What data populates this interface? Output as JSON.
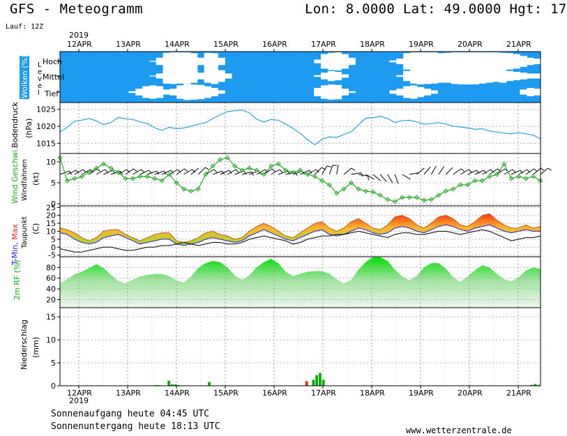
{
  "header": {
    "title": "GFS - Meteogramm",
    "position": "Lon: 8.0000 Lat: 49.0000 Hgt: 17",
    "run": "Lauf: 12Z"
  },
  "footer": {
    "sunrise": "Sonnenaufgang heute 04:45 UTC",
    "sunset": "Sonnenuntergang heute 18:13 UTC",
    "url": "www.wetterzentrale.de"
  },
  "colors": {
    "cloud_sky": "#1e9bf0",
    "cloud_white": "#ffffff",
    "pressure_line": "#2aa0e0",
    "wind_line": "#22a822",
    "tmin": "#2222dd",
    "tmax": "#dd2222",
    "dewpoint": "#000000",
    "rh_top": "#00dd00",
    "rh_bottom": "#eef7ee",
    "precip_green": "#11aa11",
    "precip_red": "#dd3311"
  },
  "chart_data": [
    {
      "type": "heatmap",
      "name": "clouds",
      "ylabel": "Wolken (%)",
      "level_word": "Level",
      "level_labels": [
        "Hoch",
        "Mittel",
        "Tief"
      ],
      "x_start": "2019-04-12T00",
      "x_end": "2019-04-21T18",
      "year": "2019",
      "date_labels": [
        "12APR",
        "13APR",
        "14APR",
        "15APR",
        "16APR",
        "17APR",
        "18APR",
        "19APR",
        "20APR",
        "21APR"
      ],
      "hoch_cover": [
        0,
        0,
        0,
        0,
        0,
        0,
        0,
        0,
        0,
        0,
        0,
        0,
        0,
        5,
        40,
        95,
        100,
        100,
        100,
        90,
        40,
        95,
        90,
        40,
        0,
        0,
        0,
        0,
        0,
        0,
        0,
        0,
        0,
        0,
        0,
        0,
        0,
        20,
        80,
        95,
        100,
        80,
        40,
        0,
        0,
        0,
        0,
        0,
        10,
        30,
        90,
        100,
        100,
        100,
        100,
        90,
        95,
        100,
        100,
        100,
        100,
        100,
        100,
        100,
        95,
        90,
        80,
        60,
        40,
        30
      ],
      "mittel_cover": [
        0,
        0,
        0,
        0,
        0,
        0,
        0,
        0,
        0,
        0,
        0,
        0,
        0,
        5,
        30,
        90,
        95,
        90,
        95,
        80,
        40,
        80,
        95,
        70,
        30,
        0,
        0,
        0,
        0,
        0,
        0,
        0,
        0,
        0,
        0,
        0,
        0,
        10,
        40,
        60,
        50,
        20,
        0,
        0,
        0,
        0,
        0,
        0,
        0,
        10,
        60,
        90,
        100,
        95,
        90,
        80,
        80,
        95,
        100,
        100,
        100,
        90,
        80,
        70,
        80,
        60,
        50,
        40,
        30,
        30
      ],
      "tief_cover": [
        0,
        0,
        0,
        0,
        0,
        0,
        0,
        0,
        0,
        0,
        10,
        40,
        70,
        80,
        70,
        30,
        40,
        80,
        95,
        90,
        85,
        70,
        50,
        20,
        0,
        0,
        0,
        0,
        0,
        0,
        0,
        0,
        0,
        0,
        0,
        0,
        0,
        50,
        80,
        90,
        85,
        40,
        10,
        0,
        0,
        0,
        0,
        0,
        20,
        40,
        70,
        80,
        60,
        40,
        20,
        0,
        0,
        0,
        0,
        0,
        0,
        0,
        0,
        0,
        0,
        0,
        0,
        30,
        50,
        40
      ]
    },
    {
      "type": "line",
      "name": "pressure",
      "ylabel": "Bodendruck",
      "yunit": "(hPa)",
      "ylim": [
        1012,
        1027
      ],
      "yticks": [
        1015,
        1020,
        1025
      ],
      "values": [
        1018.3,
        1019.7,
        1021.5,
        1021.8,
        1022.3,
        1021.6,
        1020.5,
        1021.1,
        1022.6,
        1022.2,
        1022.0,
        1021.3,
        1020.8,
        1019.6,
        1018.8,
        1019.7,
        1019.3,
        1019.5,
        1020.0,
        1020.6,
        1021.1,
        1022.3,
        1023.4,
        1024.3,
        1024.6,
        1024.8,
        1024.0,
        1022.1,
        1021.3,
        1022.0,
        1021.8,
        1020.7,
        1019.4,
        1017.9,
        1016.1,
        1014.5,
        1016.2,
        1016.9,
        1016.7,
        1017.6,
        1018.4,
        1020.4,
        1022.4,
        1022.5,
        1023.0,
        1022.3,
        1021.1,
        1021.7,
        1021.8,
        1021.3,
        1020.6,
        1020.8,
        1021.1,
        1020.7,
        1020.0,
        1019.8,
        1019.5,
        1019.1,
        1019.3,
        1018.6,
        1018.3,
        1018.0,
        1017.8,
        1018.1,
        1017.8,
        1017.4,
        1016.3
      ]
    },
    {
      "type": "line",
      "name": "wind",
      "ylabel": "Wind Geschwi.",
      "ylabel2": "Windfahnen",
      "yunit": "(kt)",
      "ylim": [
        -0.5,
        12
      ],
      "yticks": [
        0,
        5,
        10
      ],
      "values": [
        11.0,
        5.5,
        6.0,
        6.5,
        7.5,
        8.5,
        9.5,
        8.5,
        7.5,
        6.0,
        6.0,
        6.5,
        6.5,
        6.0,
        5.5,
        7.0,
        5.0,
        3.5,
        3.0,
        3.5,
        7.0,
        9.0,
        10.5,
        11.0,
        9.0,
        8.0,
        8.5,
        8.0,
        7.0,
        9.0,
        9.5,
        8.0,
        7.5,
        8.0,
        7.0,
        6.5,
        5.5,
        4.5,
        2.5,
        3.5,
        5.0,
        3.5,
        3.0,
        2.8,
        2.0,
        1.0,
        0.5,
        1.5,
        1.5,
        1.5,
        0.8,
        1.0,
        2.0,
        3.0,
        3.5,
        4.5,
        4.5,
        5.5,
        5.5,
        6.5,
        7.0,
        9.5,
        6.0,
        6.5,
        6.0,
        6.5,
        5.5
      ],
      "barb_dirs": [
        250,
        245,
        240,
        240,
        235,
        240,
        245,
        250,
        240,
        235,
        240,
        245,
        250,
        250,
        245,
        240,
        235,
        240,
        230,
        225,
        240,
        250,
        245,
        240,
        250,
        255,
        250,
        240,
        235,
        240,
        250,
        255,
        250,
        245,
        240,
        225,
        210,
        200,
        190,
        230,
        260,
        280,
        300,
        310,
        320,
        330,
        340,
        300,
        260,
        230,
        220,
        210,
        215,
        225,
        235,
        240,
        245,
        245,
        240,
        235,
        235,
        240,
        245,
        240,
        235,
        230,
        230
      ]
    },
    {
      "type": "area",
      "name": "temperature",
      "ylabel": "T-Min, Max",
      "ylabel2": "Taupunkt",
      "yunit": "(C)",
      "ylim": [
        -6,
        26
      ],
      "yticks": [
        -5,
        0,
        5,
        10,
        15,
        20,
        25
      ],
      "tmin": [
        9,
        8,
        5,
        3,
        2,
        3,
        6,
        7,
        8,
        6,
        4,
        2,
        3,
        4,
        5,
        5,
        2,
        1,
        2,
        3,
        5,
        6,
        5,
        4,
        3,
        4,
        7,
        9,
        11,
        9,
        7,
        5,
        4,
        6,
        8,
        10,
        11,
        8,
        7,
        8,
        10,
        12,
        11,
        9,
        8,
        9,
        12,
        13,
        12,
        10,
        9,
        11,
        13,
        14,
        13,
        11,
        10,
        12,
        13,
        14,
        12,
        10,
        9,
        10,
        11,
        10,
        10
      ],
      "tmax": [
        12,
        11,
        9,
        6,
        4,
        6,
        10,
        11,
        11,
        8,
        6,
        4,
        6,
        8,
        9,
        9,
        4,
        3,
        4,
        6,
        9,
        10,
        8,
        7,
        5,
        6,
        10,
        13,
        15,
        13,
        10,
        7,
        6,
        9,
        12,
        15,
        16,
        12,
        10,
        12,
        16,
        18,
        15,
        12,
        11,
        14,
        19,
        20,
        18,
        14,
        12,
        15,
        19,
        20,
        18,
        14,
        13,
        16,
        20,
        21,
        17,
        14,
        12,
        12,
        14,
        12,
        13
      ],
      "dewpoint": [
        -1,
        -2,
        -3,
        -3,
        -2,
        -1,
        0,
        0,
        -1,
        -2,
        -2,
        -1,
        0,
        0,
        1,
        1,
        2,
        3,
        2,
        1,
        2,
        3,
        3,
        2,
        2,
        3,
        5,
        6,
        7,
        6,
        5,
        4,
        2,
        3,
        5,
        6,
        7,
        7,
        8,
        8,
        9,
        10,
        9,
        8,
        7,
        6,
        8,
        9,
        9,
        8,
        8,
        9,
        10,
        10,
        9,
        8,
        9,
        10,
        11,
        10,
        8,
        6,
        4,
        5,
        6,
        6,
        7
      ]
    },
    {
      "type": "area",
      "name": "humidity",
      "ylabel": "2m RF (%)",
      "ylim": [
        5,
        100
      ],
      "yticks": [
        20,
        40,
        60,
        80
      ],
      "values": [
        50,
        58,
        67,
        72,
        79,
        86,
        79,
        66,
        55,
        50,
        57,
        63,
        66,
        68,
        68,
        64,
        56,
        52,
        63,
        79,
        88,
        92,
        90,
        80,
        65,
        57,
        65,
        80,
        90,
        96,
        88,
        72,
        64,
        68,
        72,
        73,
        73,
        68,
        58,
        50,
        57,
        76,
        90,
        99,
        99,
        92,
        76,
        63,
        56,
        64,
        80,
        88,
        88,
        78,
        62,
        53,
        63,
        75,
        84,
        80,
        68,
        58,
        54,
        62,
        74,
        80,
        77
      ]
    },
    {
      "type": "bar",
      "name": "precipitation",
      "ylabel": "Niederschlag",
      "yunit": "(mm)",
      "ylim": [
        0,
        17
      ],
      "yticks": [
        0,
        5,
        10,
        15
      ],
      "green": [
        0,
        0,
        0,
        0,
        0,
        0,
        0,
        0,
        0,
        0,
        0,
        0,
        0,
        0,
        0,
        0,
        0.2,
        0,
        0,
        0.15,
        0.15,
        0.15,
        0,
        0,
        0.8,
        0,
        0,
        0,
        0,
        0,
        0,
        0,
        0,
        0,
        0,
        0,
        0,
        0,
        0,
        0,
        0,
        0,
        0,
        0,
        0.1,
        0,
        0,
        0,
        0,
        0,
        0,
        0,
        0,
        0,
        0,
        0,
        0,
        0,
        0,
        0,
        0,
        0,
        0,
        0,
        0,
        0,
        0,
        0,
        0,
        0,
        0,
        0,
        0,
        0,
        0,
        0,
        0,
        0,
        0,
        0,
        0,
        0,
        0,
        0,
        0,
        0,
        0,
        0,
        0,
        0,
        0,
        0,
        0,
        0,
        0.2,
        0.1,
        0.1,
        0,
        0,
        0,
        0,
        0,
        0,
        0,
        0,
        0,
        0,
        0,
        0,
        0,
        0,
        0,
        0,
        0,
        0,
        0,
        0,
        0,
        0,
        0,
        0,
        0,
        0,
        0,
        0,
        0,
        0,
        0,
        0,
        0,
        0,
        0,
        0,
        0,
        0,
        0,
        0,
        0,
        0,
        0,
        0,
        0,
        0,
        0,
        0,
        0,
        0,
        0,
        0,
        0,
        0,
        0,
        0,
        0,
        0,
        0,
        0,
        0,
        0,
        0,
        0,
        0,
        0,
        0,
        0,
        0,
        0,
        0,
        0,
        0,
        0,
        0,
        0,
        0,
        0,
        0,
        0,
        0,
        0,
        0,
        0,
        0,
        0,
        0,
        0,
        0,
        0,
        0,
        0,
        0,
        0,
        0,
        0,
        0,
        0,
        0,
        0,
        0,
        0,
        0,
        0,
        0,
        0,
        0,
        0.3,
        0.2,
        0,
        0,
        0,
        0,
        0,
        0,
        0,
        0,
        0,
        0,
        0,
        0,
        0,
        0,
        0,
        0,
        0,
        0,
        0,
        0,
        0,
        0,
        0,
        0,
        0,
        0,
        0,
        0,
        0,
        0,
        0,
        0,
        0,
        0,
        0,
        0,
        0,
        0,
        0,
        0,
        0
      ],
      "green_unit_note": "",
      "precip_green": [
        0,
        0,
        0,
        0,
        0,
        0,
        0,
        0,
        0,
        0,
        0,
        0,
        0,
        0,
        0,
        0,
        0,
        0,
        0,
        0,
        0,
        0,
        0,
        0,
        0,
        0,
        0,
        0,
        0.15,
        0.15,
        0,
        0,
        1.1,
        0.3,
        0.3,
        0.15,
        0,
        0,
        0,
        0,
        0,
        0,
        0,
        0,
        0.8,
        0,
        0,
        0,
        0,
        0,
        0,
        0,
        0,
        0,
        0,
        0,
        0,
        0,
        0,
        0,
        0,
        0,
        0,
        0,
        0,
        0,
        0,
        0,
        0,
        0,
        0,
        0,
        0,
        0,
        0,
        1.3,
        2.3,
        2.8,
        1.3,
        0,
        0,
        0,
        0,
        0,
        0,
        0,
        0,
        0,
        0,
        0,
        0,
        0,
        0,
        0,
        0,
        0,
        0,
        0,
        0,
        0,
        0,
        0,
        0,
        0,
        0,
        0,
        0,
        0,
        0,
        0,
        0,
        0,
        0,
        0,
        0,
        0,
        0,
        0,
        0,
        0,
        0,
        0,
        0,
        0,
        0,
        0,
        0,
        0,
        0,
        0,
        0,
        0,
        0,
        0,
        0,
        0,
        0,
        0,
        0,
        0,
        0.2,
        0.4,
        0.2
      ],
      "precip_red": [
        0,
        0,
        0,
        0,
        0,
        0,
        0,
        0,
        0,
        0,
        0,
        0,
        0,
        0,
        0,
        0,
        0,
        0,
        0,
        0,
        0,
        0,
        0,
        0,
        0,
        0,
        0,
        0,
        0,
        0,
        0,
        0,
        0,
        0,
        0,
        0,
        0,
        0,
        0,
        0,
        0,
        0,
        0,
        0,
        0,
        0,
        0,
        0,
        0,
        0,
        0,
        0,
        0,
        0,
        0,
        0,
        0,
        0,
        0,
        0,
        0,
        0,
        0,
        0,
        0,
        0,
        0,
        0,
        0,
        0,
        0,
        0,
        0,
        1.0,
        0,
        0,
        0,
        0,
        0,
        0,
        0,
        0,
        0,
        0,
        0,
        0,
        0,
        0,
        0,
        0,
        0,
        0,
        0,
        0,
        0,
        0,
        0,
        0,
        0,
        0,
        0,
        0,
        0,
        0,
        0,
        0,
        0,
        0,
        0,
        0,
        0,
        0,
        0,
        0,
        0,
        0,
        0,
        0,
        0,
        0,
        0,
        0,
        0,
        0,
        0,
        0,
        0,
        0,
        0,
        0,
        0,
        0,
        0,
        0,
        0,
        0,
        0,
        0,
        0,
        0,
        0,
        0,
        0,
        0,
        0,
        0,
        0,
        0
      ]
    }
  ]
}
